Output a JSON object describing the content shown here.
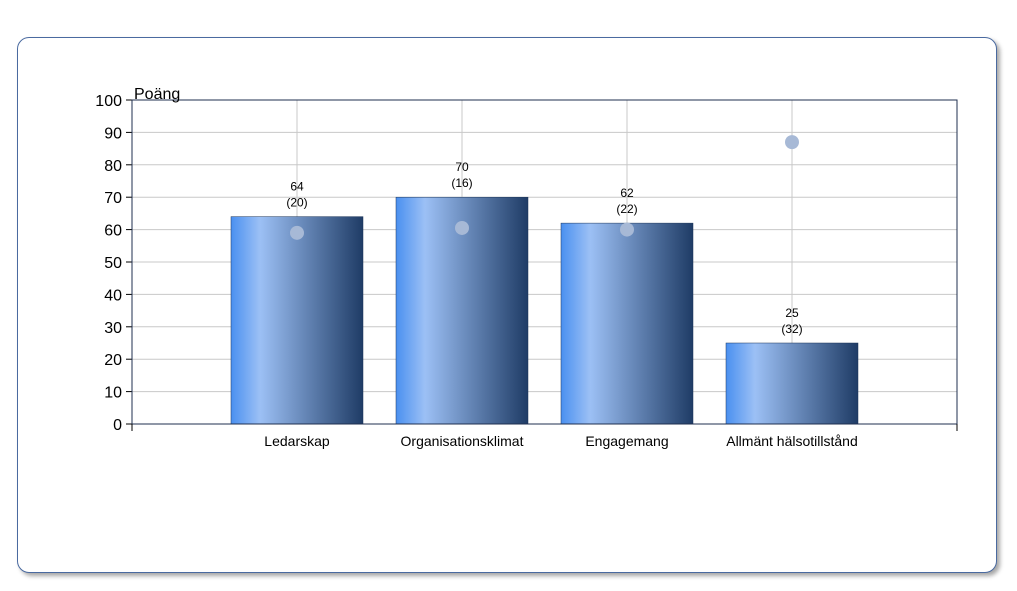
{
  "chart_data": {
    "type": "bar",
    "ylabel": "Poäng",
    "ylim": [
      0,
      100
    ],
    "yticks": [
      0,
      10,
      20,
      30,
      40,
      50,
      60,
      70,
      80,
      90,
      100
    ],
    "grid": true,
    "categories": [
      "Ledarskap",
      "Organisationsklimat",
      "Engagemang",
      "Allmänt hälsotillstånd"
    ],
    "series": [
      {
        "values": [
          64,
          70,
          62,
          25
        ],
        "value_labels": [
          "64",
          "70",
          "62",
          "25"
        ],
        "count_labels": [
          "(20)",
          "(16)",
          "(22)",
          "(32)"
        ],
        "color_dark": "#1f3c66",
        "color_light": "#9cc0f5",
        "color_edge": "#4a90f0"
      },
      {
        "type": "scatter",
        "values": [
          59,
          60.5,
          60,
          87
        ],
        "color": "#a7b9d6"
      }
    ]
  }
}
